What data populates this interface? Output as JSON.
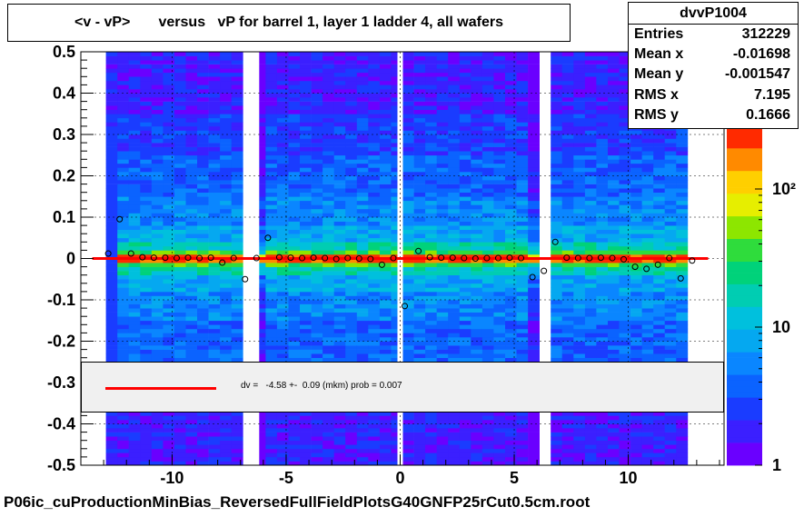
{
  "chart_data": {
    "type": "heatmap",
    "title": "<v - vP>       versus   vP for barrel 1, layer 1 ladder 4, all wafers",
    "xlim": [
      -14,
      14.2
    ],
    "ylim": [
      -0.5,
      0.5
    ],
    "x_ticks": [
      "-10",
      "-5",
      "0",
      "5",
      "10"
    ],
    "x_tick_values": [
      -10,
      -5,
      0,
      5,
      10
    ],
    "y_ticks": [
      "0.5",
      "0.4",
      "0.3",
      "0.2",
      "0.1",
      "0",
      "-0.1",
      "-0.2",
      "-0.3",
      "-0.4",
      "-0.5"
    ],
    "y_tick_values": [
      0.5,
      0.4,
      0.3,
      0.2,
      0.1,
      0,
      -0.1,
      -0.2,
      -0.3,
      -0.4,
      -0.5
    ],
    "z_scale": "log",
    "z_ticks": [
      "1",
      "10",
      "10²"
    ],
    "z_tick_values": [
      1,
      10,
      100
    ],
    "grid": true,
    "fit_line": {
      "y": 0.0,
      "x_range": [
        -13.5,
        13.5
      ],
      "color": "#ff0000"
    },
    "profile_points": [
      {
        "x": -12.8,
        "y": 0.012
      },
      {
        "x": -12.3,
        "y": 0.095
      },
      {
        "x": -11.8,
        "y": 0.012
      },
      {
        "x": -11.3,
        "y": 0.003
      },
      {
        "x": -10.8,
        "y": 0.002
      },
      {
        "x": -10.3,
        "y": 0.002
      },
      {
        "x": -9.8,
        "y": 0.001
      },
      {
        "x": -9.3,
        "y": 0.002
      },
      {
        "x": -8.8,
        "y": 0.001
      },
      {
        "x": -8.3,
        "y": 0.002
      },
      {
        "x": -7.8,
        "y": -0.01
      },
      {
        "x": -7.3,
        "y": 0.001
      },
      {
        "x": -6.8,
        "y": -0.05
      },
      {
        "x": -6.3,
        "y": 0.001
      },
      {
        "x": -5.8,
        "y": 0.05
      },
      {
        "x": -5.3,
        "y": 0.003
      },
      {
        "x": -4.8,
        "y": 0.002
      },
      {
        "x": -4.3,
        "y": 0.001
      },
      {
        "x": -3.8,
        "y": 0.002
      },
      {
        "x": -3.3,
        "y": 0.001
      },
      {
        "x": -2.8,
        "y": -0.001
      },
      {
        "x": -2.3,
        "y": 0.001
      },
      {
        "x": -1.8,
        "y": 0.0
      },
      {
        "x": -1.3,
        "y": -0.001
      },
      {
        "x": -0.8,
        "y": -0.015
      },
      {
        "x": -0.3,
        "y": 0.001
      },
      {
        "x": 0.2,
        "y": -0.115
      },
      {
        "x": 0.8,
        "y": 0.018
      },
      {
        "x": 1.3,
        "y": 0.003
      },
      {
        "x": 1.8,
        "y": 0.002
      },
      {
        "x": 2.3,
        "y": 0.002
      },
      {
        "x": 2.8,
        "y": 0.001
      },
      {
        "x": 3.3,
        "y": 0.0
      },
      {
        "x": 3.8,
        "y": 0.001
      },
      {
        "x": 4.3,
        "y": 0.001
      },
      {
        "x": 4.8,
        "y": 0.002
      },
      {
        "x": 5.3,
        "y": 0.001
      },
      {
        "x": 5.8,
        "y": -0.045
      },
      {
        "x": 6.3,
        "y": -0.03
      },
      {
        "x": 6.8,
        "y": 0.04
      },
      {
        "x": 7.3,
        "y": 0.002
      },
      {
        "x": 7.8,
        "y": 0.001
      },
      {
        "x": 8.3,
        "y": 0.001
      },
      {
        "x": 8.8,
        "y": 0.002
      },
      {
        "x": 9.3,
        "y": 0.001
      },
      {
        "x": 9.8,
        "y": -0.002
      },
      {
        "x": 10.3,
        "y": -0.02
      },
      {
        "x": 10.8,
        "y": -0.025
      },
      {
        "x": 11.3,
        "y": -0.015
      },
      {
        "x": 11.8,
        "y": 0.001
      },
      {
        "x": 12.3,
        "y": -0.048
      },
      {
        "x": 12.8,
        "y": -0.005
      }
    ],
    "empty_columns_x": [
      -6.6,
      -6.3,
      0.0,
      6.3
    ]
  },
  "stats": {
    "name": "dvvP1004",
    "rows": [
      {
        "label": "Entries",
        "value": "312229"
      },
      {
        "label": "Mean x",
        "value": "-0.01698"
      },
      {
        "label": "Mean y",
        "value": "-0.001547"
      },
      {
        "label": "RMS x",
        "value": "7.195"
      },
      {
        "label": "RMS y",
        "value": "0.1666"
      }
    ]
  },
  "fit": {
    "text": "dv =   -4.58 +-  0.09 (mkm) prob = 0.007",
    "color": "#ff0000"
  },
  "footer": "P06ic_cuProductionMinBias_ReversedFullFieldPlotsG40GNFP25rCut0.5cm.root"
}
